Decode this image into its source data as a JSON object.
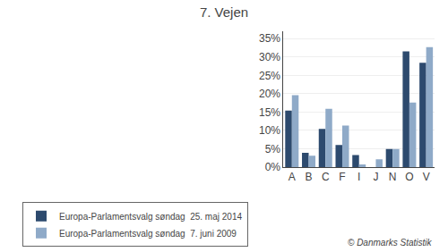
{
  "chart_data": {
    "type": "bar",
    "title": "7. Vejen",
    "categories": [
      "A",
      "B",
      "C",
      "F",
      "I",
      "J",
      "N",
      "O",
      "V"
    ],
    "series": [
      {
        "name": "Europa-Parlamentsvalg søndag  25. maj 2014",
        "color": "#2d4a6e",
        "values": [
          15.4,
          3.9,
          10.4,
          6.0,
          3.3,
          0.0,
          4.9,
          31.5,
          28.4
        ]
      },
      {
        "name": "Europa-Parlamentsvalg søndag  7. juni 2009",
        "color": "#8faac8",
        "values": [
          19.6,
          3.1,
          15.9,
          11.3,
          0.7,
          2.1,
          4.9,
          17.6,
          32.7
        ]
      }
    ],
    "ylim": [
      0,
      37
    ],
    "yticks": [
      {
        "value": 0,
        "label": "0%"
      },
      {
        "value": 5,
        "label": "5%"
      },
      {
        "value": 10,
        "label": "10%"
      },
      {
        "value": 15,
        "label": "15%"
      },
      {
        "value": 20,
        "label": "20%"
      },
      {
        "value": 25,
        "label": "25%"
      },
      {
        "value": 30,
        "label": "30%"
      },
      {
        "value": 35,
        "label": "35%"
      }
    ],
    "grid": true,
    "legend": "bottom",
    "annotations": [
      "© Danmarks Statistik"
    ]
  }
}
